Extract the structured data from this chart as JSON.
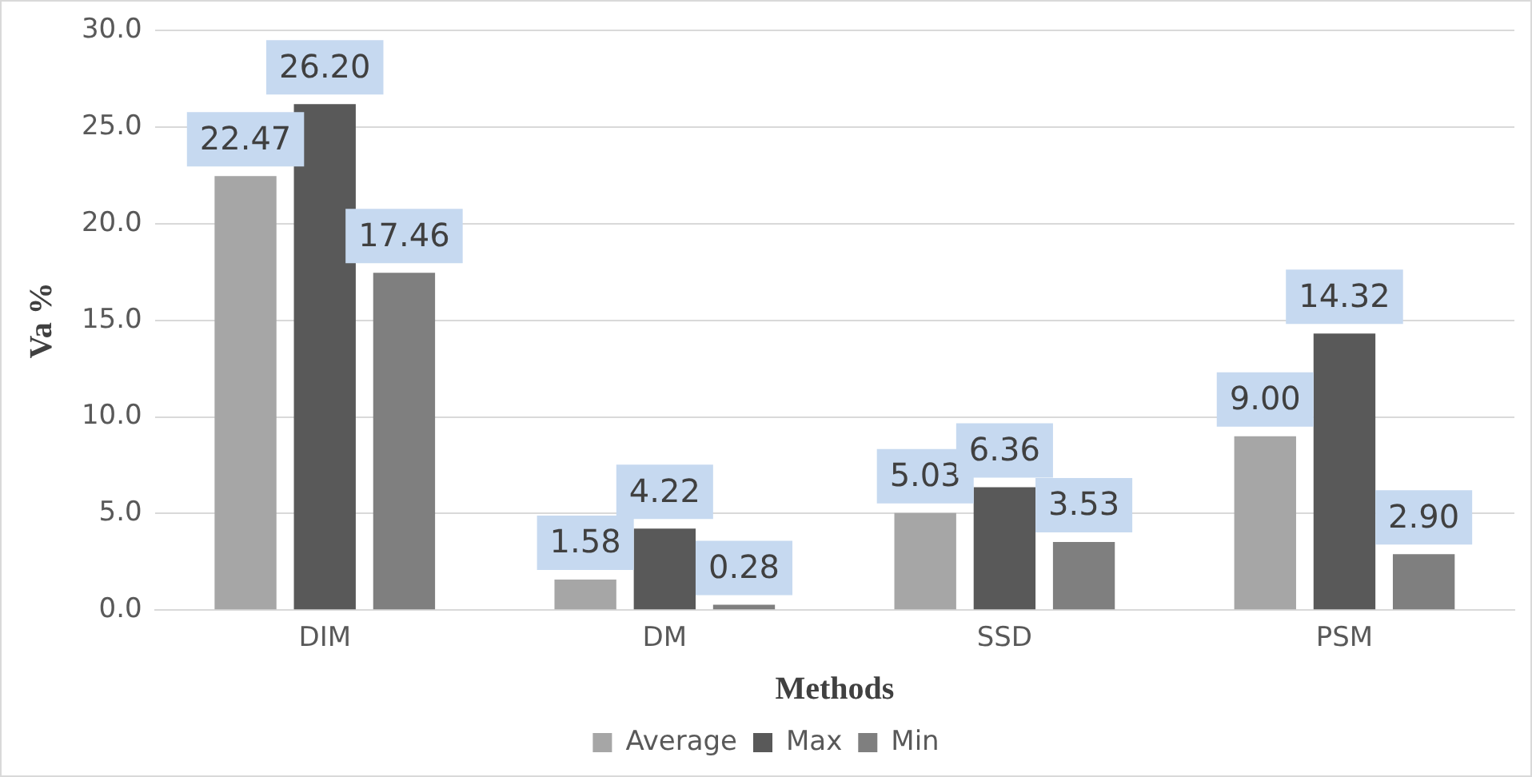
{
  "chart_data": {
    "type": "bar",
    "xlabel": "Methods",
    "ylabel": "Va %",
    "categories": [
      "DIM",
      "DM",
      "SSD",
      "PSM"
    ],
    "series": [
      {
        "name": "Average",
        "color": "#a6a6a6",
        "values": [
          22.47,
          1.58,
          5.03,
          9.0
        ],
        "value_labels": [
          "22.47",
          "1.58",
          "5.03",
          "9.00"
        ]
      },
      {
        "name": "Max",
        "color": "#595959",
        "values": [
          26.2,
          4.22,
          6.36,
          14.32
        ],
        "value_labels": [
          "26.20",
          "4.22",
          "6.36",
          "14.32"
        ]
      },
      {
        "name": "Min",
        "color": "#7f7f7f",
        "values": [
          17.46,
          0.28,
          3.53,
          2.9
        ],
        "value_labels": [
          "17.46",
          "0.28",
          "3.53",
          "2.90"
        ]
      }
    ],
    "ylim": [
      0,
      30
    ],
    "yticks": [
      {
        "value": 0,
        "label": "0.0"
      },
      {
        "value": 5,
        "label": "5.0"
      },
      {
        "value": 10,
        "label": "10.0"
      },
      {
        "value": 15,
        "label": "15.0"
      },
      {
        "value": 20,
        "label": "20.0"
      },
      {
        "value": 25,
        "label": "25.0"
      },
      {
        "value": 30,
        "label": "30.0"
      }
    ],
    "grid": "y",
    "legend": "bottom"
  }
}
